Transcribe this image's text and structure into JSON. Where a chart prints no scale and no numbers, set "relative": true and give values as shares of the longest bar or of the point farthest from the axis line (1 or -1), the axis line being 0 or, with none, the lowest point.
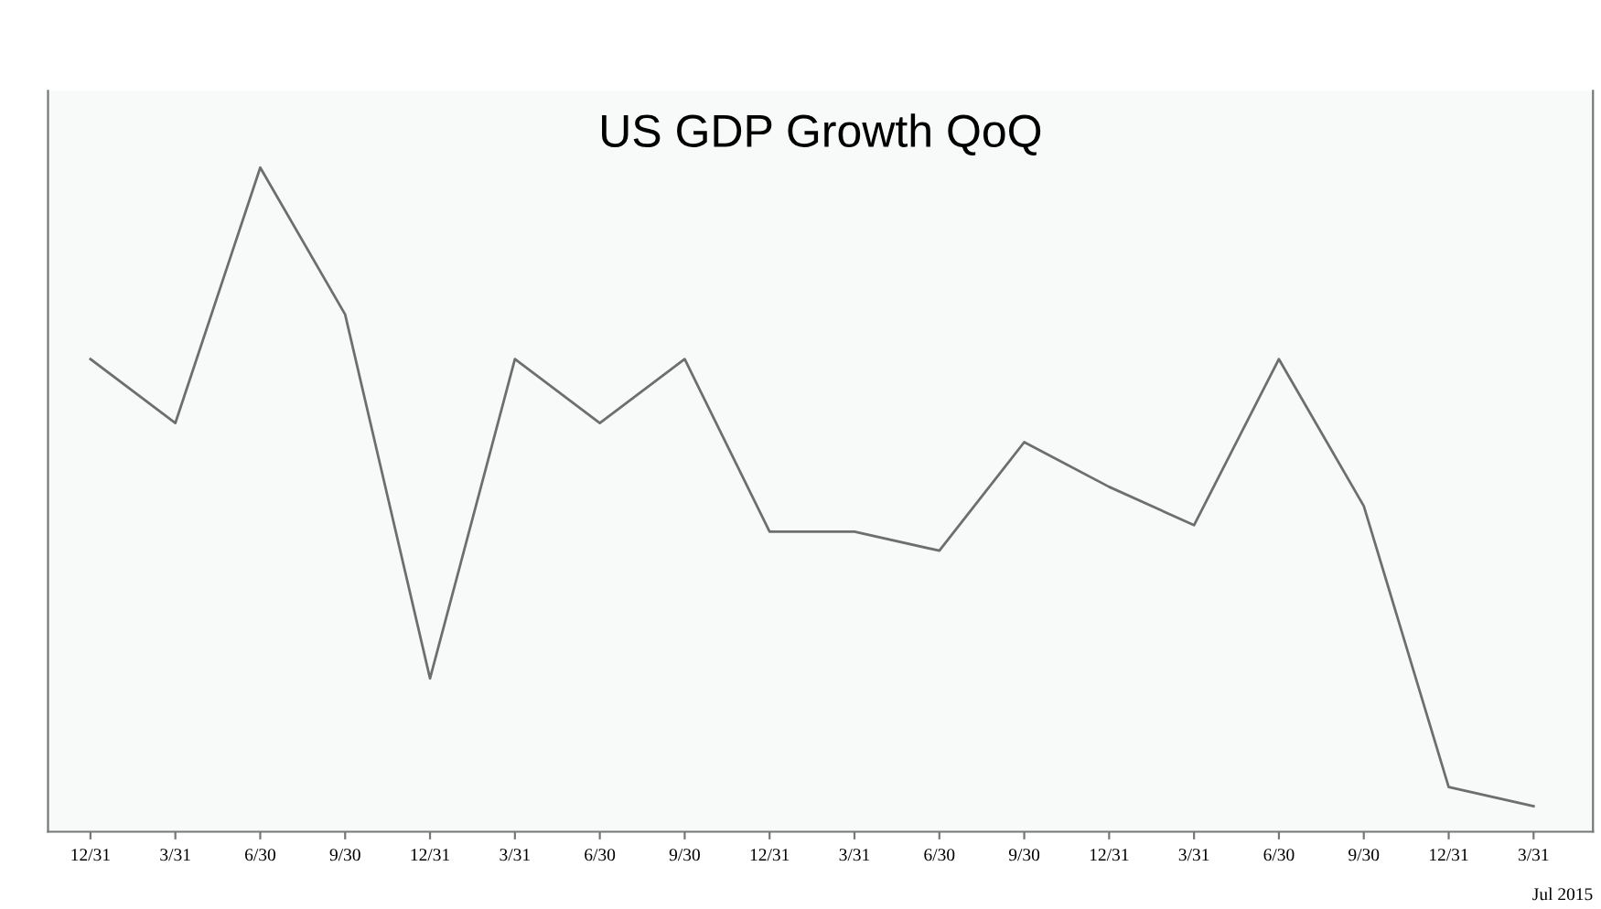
{
  "chart_data": {
    "type": "line",
    "title": "US GDP Growth QoQ",
    "relative": true,
    "categories": [
      "12/31",
      "3/31",
      "6/30",
      "9/30",
      "12/31",
      "3/31",
      "6/30",
      "9/30",
      "12/31",
      "3/31",
      "6/30",
      "9/30",
      "12/31",
      "3/31",
      "6/30",
      "9/30",
      "12/31",
      "3/31"
    ],
    "series": [
      {
        "color": "#6e6e6e",
        "values": [
          0.7,
          0.6,
          1,
          0.77,
          0.2,
          0.7,
          0.6,
          0.7,
          0.43,
          0.43,
          0.4,
          0.57,
          0.5,
          0.44,
          0.7,
          0.47,
          0.03,
          0
        ]
      }
    ],
    "annotations": [
      "Jul 2015"
    ],
    "grid": false,
    "legend": false,
    "marker": "none",
    "line_style": "solid"
  }
}
